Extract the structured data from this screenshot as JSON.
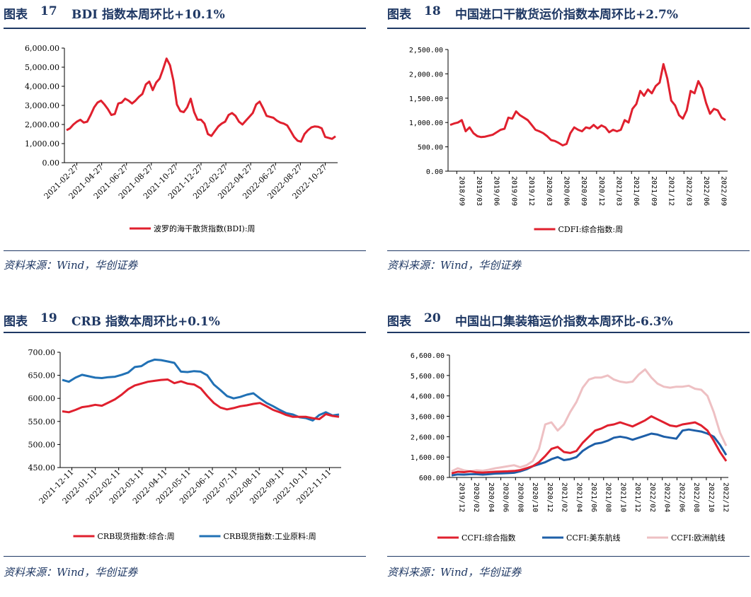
{
  "panels": [
    {
      "figure_label": "图表",
      "number": "17",
      "title": "BDI 指数本周环比+10.1%",
      "source": "资料来源：Wind，华创证券"
    },
    {
      "figure_label": "图表",
      "number": "18",
      "title": "中国进口干散货运价指数本周环比+2.7%",
      "source": "资料来源：Wind，华创证券"
    },
    {
      "figure_label": "图表",
      "number": "19",
      "title": "CRB 指数本周环比+0.1%",
      "source": "资料来源：Wind，华创证券"
    },
    {
      "figure_label": "图表",
      "number": "20",
      "title": "中国出口集装箱运价指数本周环比-6.3%",
      "source": "资料来源：Wind，华创证券"
    }
  ],
  "chart_data": [
    {
      "type": "line",
      "y_ticks": [
        "6,000.00",
        "5,000.00",
        "4,000.00",
        "3,000.00",
        "2,000.00",
        "1,000.00",
        "0.00"
      ],
      "ylim": [
        0,
        6000
      ],
      "x_tick_labels": [
        "2021-02-27",
        "2021-04-27",
        "2021-06-27",
        "2021-08-27",
        "2021-10-27",
        "2021-12-27",
        "2022-02-27",
        "2022-04-27",
        "2022-06-27",
        "2022-08-27",
        "2022-10-27"
      ],
      "series": [
        {
          "name": "波罗的海干散货指数(BDI):周",
          "color": "#e0202e",
          "values": [
            1700,
            1800,
            2000,
            2150,
            2250,
            2100,
            2150,
            2500,
            2900,
            3150,
            3250,
            3050,
            2800,
            2500,
            2550,
            3100,
            3150,
            3350,
            3250,
            3100,
            3250,
            3450,
            3600,
            4100,
            4250,
            3800,
            4200,
            4400,
            4900,
            5450,
            5100,
            4300,
            3050,
            2700,
            2650,
            2900,
            3350,
            2650,
            2250,
            2250,
            2050,
            1500,
            1400,
            1650,
            1900,
            2050,
            2150,
            2500,
            2600,
            2450,
            2150,
            2000,
            2200,
            2400,
            2600,
            3050,
            3200,
            2850,
            2450,
            2400,
            2350,
            2200,
            2100,
            2050,
            1950,
            1650,
            1350,
            1150,
            1100,
            1500,
            1700,
            1850,
            1900,
            1880,
            1800,
            1350,
            1300,
            1250,
            1380
          ]
        }
      ]
    },
    {
      "type": "line",
      "y_ticks": [
        "2,500.00",
        "2,000.00",
        "1,500.00",
        "1,000.00",
        "500.00",
        "0.00"
      ],
      "ylim": [
        0,
        2500
      ],
      "x_tick_labels": [
        "2018/09",
        "2019/03",
        "2019/06",
        "2019/09",
        "2019/12",
        "2020/03",
        "2020/06",
        "2020/09",
        "2020/12",
        "2021/03",
        "2021/06",
        "2021/09",
        "2021/12",
        "2022/03",
        "2022/06",
        "2022/09"
      ],
      "series": [
        {
          "name": "CDFI:综合指数:周",
          "color": "#e0202e",
          "values": [
            950,
            980,
            1000,
            1050,
            820,
            900,
            780,
            720,
            700,
            710,
            730,
            750,
            800,
            850,
            870,
            1100,
            1080,
            1230,
            1150,
            1100,
            1050,
            950,
            850,
            820,
            780,
            720,
            640,
            620,
            580,
            530,
            560,
            780,
            900,
            850,
            820,
            900,
            880,
            950,
            880,
            940,
            900,
            800,
            850,
            820,
            850,
            1050,
            1000,
            1280,
            1380,
            1650,
            1550,
            1680,
            1600,
            1750,
            1820,
            2200,
            1900,
            1450,
            1350,
            1150,
            1080,
            1250,
            1650,
            1600,
            1850,
            1700,
            1400,
            1180,
            1280,
            1250,
            1100,
            1050
          ]
        }
      ]
    },
    {
      "type": "line",
      "y_ticks": [
        "700.00",
        "650.00",
        "600.00",
        "550.00",
        "500.00",
        "450.00"
      ],
      "ylim": [
        450,
        700
      ],
      "x_tick_labels": [
        "2021-12-11",
        "2022-01-11",
        "2022-02-11",
        "2022-03-11",
        "2022-04-11",
        "2022-05-11",
        "2022-06-11",
        "2022-07-11",
        "2022-08-11",
        "2022-09-11",
        "2022-10-11",
        "2022-11-11"
      ],
      "legend_position": "bottom",
      "series": [
        {
          "name": "CRB现货指数:综合:周",
          "color": "#e0202e",
          "values": [
            572,
            570,
            575,
            581,
            583,
            586,
            584,
            591,
            598,
            608,
            620,
            628,
            632,
            636,
            638,
            640,
            641,
            633,
            637,
            632,
            630,
            622,
            605,
            590,
            580,
            576,
            579,
            583,
            585,
            588,
            590,
            583,
            575,
            570,
            564,
            560,
            560,
            560,
            557,
            555,
            566,
            562,
            560
          ]
        },
        {
          "name": "CRB现货指数:工业原料:周",
          "color": "#2171b5",
          "values": [
            640,
            636,
            645,
            651,
            648,
            645,
            644,
            646,
            647,
            651,
            656,
            668,
            670,
            679,
            684,
            683,
            680,
            677,
            658,
            657,
            659,
            658,
            650,
            630,
            618,
            605,
            600,
            603,
            608,
            611,
            600,
            590,
            583,
            575,
            568,
            565,
            559,
            557,
            552,
            564,
            570,
            563,
            565
          ]
        }
      ]
    },
    {
      "type": "line",
      "y_ticks": [
        "6,600.00",
        "5,600.00",
        "4,600.00",
        "3,600.00",
        "2,600.00",
        "1,600.00",
        "600.00"
      ],
      "ylim": [
        600,
        6600
      ],
      "x_tick_labels": [
        "2019/12",
        "2020/02",
        "2020/04",
        "2020/06",
        "2020/08",
        "2020/10",
        "2020/12",
        "2021/02",
        "2021/04",
        "2021/06",
        "2021/08",
        "2021/10",
        "2021/12",
        "2022/02",
        "2022/04",
        "2022/06",
        "2022/08",
        "2022/10",
        "2022/12"
      ],
      "legend_position": "bottom",
      "series": [
        {
          "name": "CCFI:综合指数",
          "color": "#e0202e",
          "values": [
            800,
            880,
            860,
            900,
            850,
            840,
            860,
            880,
            890,
            900,
            920,
            960,
            1050,
            1150,
            1350,
            1650,
            2000,
            2100,
            1850,
            1800,
            1900,
            2300,
            2600,
            2900,
            3000,
            3150,
            3200,
            3300,
            3200,
            3100,
            3250,
            3400,
            3600,
            3450,
            3300,
            3150,
            3100,
            3200,
            3250,
            3300,
            3150,
            2900,
            2400,
            1850,
            1400
          ]
        },
        {
          "name": "CCFI:美东航线",
          "color": "#1e5fa8",
          "values": [
            700,
            750,
            740,
            760,
            760,
            740,
            760,
            790,
            800,
            810,
            830,
            900,
            1000,
            1150,
            1250,
            1350,
            1500,
            1600,
            1450,
            1500,
            1600,
            1900,
            2100,
            2250,
            2300,
            2400,
            2550,
            2600,
            2550,
            2450,
            2550,
            2650,
            2750,
            2700,
            2600,
            2550,
            2500,
            2900,
            2950,
            2900,
            2850,
            2750,
            2600,
            2200,
            1700
          ]
        },
        {
          "name": "CCFI:欧洲航线",
          "color": "#eec0c3",
          "values": [
            900,
            1050,
            950,
            900,
            950,
            930,
            980,
            1050,
            1100,
            1150,
            1200,
            1100,
            1200,
            1400,
            2000,
            3200,
            3300,
            2900,
            3200,
            3800,
            4300,
            5000,
            5400,
            5500,
            5500,
            5600,
            5400,
            5300,
            5250,
            5300,
            5650,
            5900,
            5500,
            5200,
            5050,
            5000,
            5050,
            5050,
            5100,
            4950,
            4900,
            4600,
            3800,
            2800,
            2150
          ]
        }
      ]
    }
  ]
}
